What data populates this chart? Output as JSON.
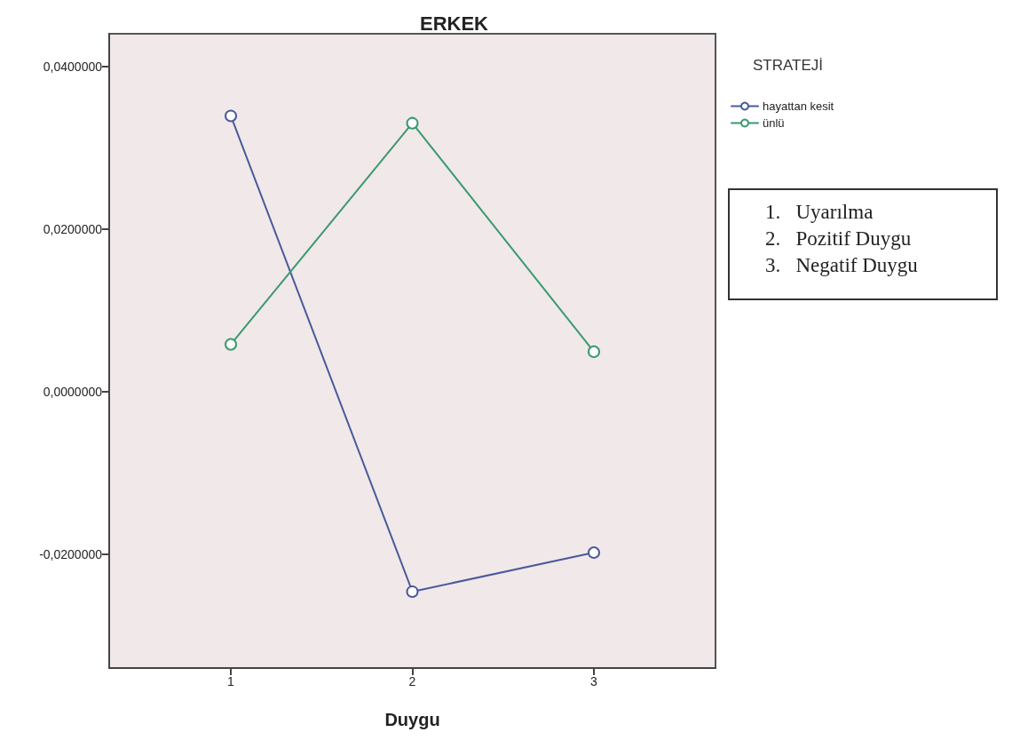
{
  "chart_data": {
    "type": "line",
    "title": "ERKEK",
    "xlabel": "Duygu",
    "legend_title": "STRATEJİ",
    "x": [
      1,
      2,
      3
    ],
    "series": [
      {
        "name": "hayattan kesit",
        "color": "#4a5a9a",
        "values": [
          0.0339,
          -0.0246,
          -0.0198
        ]
      },
      {
        "name": "ünlü",
        "color": "#3a9a6e",
        "values": [
          0.0058,
          0.033,
          0.0049
        ]
      }
    ],
    "xlim": [
      0.33,
      3.67
    ],
    "xticks": [
      1,
      2,
      3
    ],
    "ylim": [
      -0.034,
      0.044
    ],
    "yticks": [
      {
        "value": -0.02,
        "label": "-0,0200000"
      },
      {
        "value": 0,
        "label": "0,0000000"
      },
      {
        "value": 0.02,
        "label": "0,0200000"
      },
      {
        "value": 0.04,
        "label": "0,0400000"
      }
    ],
    "grid": false,
    "legend": "top right",
    "marker": "circle",
    "line_style": "solid",
    "annotations": [
      "1.   Uyarılma",
      "2.   Pozitif Duygu",
      "3.   Negatif Duygu"
    ]
  }
}
